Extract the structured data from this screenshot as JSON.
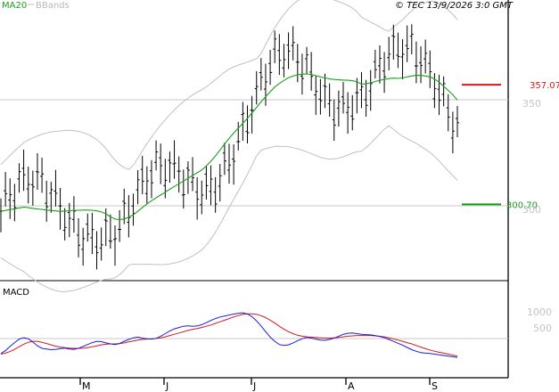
{
  "legend": {
    "ma": "MA20",
    "bb": "BBands"
  },
  "copyright": "© TEC 13/9/2026 3:0 GMT",
  "macd_label": "MACD",
  "levels": {
    "resistance": {
      "label": "357.07",
      "value": 357.07,
      "color": "#d11c1c"
    },
    "support": {
      "label": "300.70",
      "value": 300.7,
      "color": "#1a9a1a"
    }
  },
  "colors": {
    "bars": "#000000",
    "ma": "#19a019",
    "bands": "#c0c0c0",
    "macd": "#1a1ae0",
    "signal": "#d11c1c",
    "grid": "#c8c8c8"
  },
  "chart_data": [
    {
      "type": "ohlc",
      "title": "",
      "y_ticks": [
        {
          "value": 300,
          "label": "300"
        },
        {
          "value": 350,
          "label": "350"
        }
      ],
      "ylim": [
        258,
        390
      ],
      "x_month_labels": [
        "M",
        "J",
        "J",
        "A",
        "S"
      ],
      "grid": "horizontal at tick values",
      "series": [
        {
          "name": "MA20",
          "values": [
            297.5,
            297.8,
            298.2,
            298.6,
            299.0,
            299.4,
            299.1,
            298.8,
            298.5,
            298.3,
            298.0,
            297.8,
            297.6,
            297.4,
            297.5,
            297.7,
            297.8,
            297.9,
            298.0,
            298.0,
            297.9,
            297.6,
            297.1,
            296.2,
            294.8,
            293.8,
            293.5,
            293.8,
            294.6,
            295.8,
            297.4,
            299.2,
            300.9,
            302.4,
            303.8,
            305.1,
            306.4,
            307.8,
            309.1,
            310.4,
            311.7,
            313.0,
            314.3,
            315.6,
            316.9,
            318.8,
            321.0,
            323.5,
            326.3,
            329.1,
            331.8,
            334.3,
            336.6,
            338.9,
            341.3,
            343.8,
            346.4,
            349.0,
            351.5,
            353.8,
            356.0,
            357.7,
            359.1,
            360.4,
            361.2,
            361.8,
            362.1,
            362.2,
            361.9,
            361.4,
            360.8,
            360.3,
            359.9,
            359.6,
            359.4,
            359.3,
            359.2,
            359.0,
            358.5,
            357.3,
            357.6,
            358.0,
            358.6,
            359.2,
            359.6,
            360.0,
            360.2,
            360.1,
            360.3,
            360.8,
            361.2,
            361.6,
            361.5,
            361.2,
            360.8,
            359.8,
            358.3,
            356.4,
            354.4,
            352.3,
            349.9
          ]
        },
        {
          "name": "BBands",
          "values": []
        }
      ]
    },
    {
      "type": "line",
      "title": "MACD",
      "y_ticks": [
        {
          "value": 1000,
          "label": "1000"
        },
        {
          "value": 500,
          "label": "500"
        }
      ],
      "ylim": [
        -450,
        1350
      ],
      "series": [
        {
          "name": "MACD",
          "values": [
            -300,
            -210,
            -80,
            40,
            150,
            190,
            160,
            60,
            -60,
            -140,
            -160,
            -180,
            -170,
            -150,
            -130,
            -160,
            -170,
            -140,
            -80,
            -20,
            40,
            80,
            70,
            30,
            0,
            -20,
            10,
            80,
            140,
            190,
            210,
            180,
            160,
            150,
            170,
            240,
            320,
            400,
            470,
            510,
            550,
            560,
            550,
            560,
            600,
            660,
            730,
            790,
            840,
            870,
            900,
            930,
            950,
            970,
            930,
            850,
            720,
            560,
            380,
            210,
            80,
            -20,
            -50,
            -30,
            30,
            100,
            160,
            200,
            180,
            150,
            120,
            110,
            140,
            180,
            240,
            300,
            330,
            340,
            320,
            300,
            290,
            280,
            260,
            230,
            190,
            140,
            80,
            20,
            -40,
            -110,
            -180,
            -230,
            -270,
            -290,
            -300,
            -320,
            -340,
            -360,
            -380,
            -400,
            -420
          ]
        },
        {
          "name": "Signal",
          "values": [
            -320,
            -290,
            -240,
            -170,
            -90,
            -10,
            50,
            80,
            80,
            50,
            10,
            -30,
            -70,
            -100,
            -120,
            -130,
            -140,
            -140,
            -135,
            -115,
            -90,
            -60,
            -30,
            -10,
            0,
            0,
            10,
            30,
            60,
            90,
            120,
            140,
            150,
            160,
            170,
            190,
            220,
            260,
            300,
            340,
            380,
            420,
            450,
            480,
            510,
            550,
            590,
            640,
            690,
            740,
            790,
            840,
            880,
            920,
            940,
            940,
            920,
            880,
            820,
            740,
            650,
            550,
            460,
            380,
            320,
            270,
            240,
            220,
            210,
            200,
            190,
            180,
            180,
            190,
            200,
            220,
            240,
            250,
            260,
            260,
            260,
            260,
            250,
            240,
            220,
            190,
            160,
            120,
            80,
            40,
            0,
            -50,
            -100,
            -150,
            -190,
            -230,
            -260,
            -290,
            -320,
            -350,
            -380
          ]
        }
      ]
    }
  ]
}
